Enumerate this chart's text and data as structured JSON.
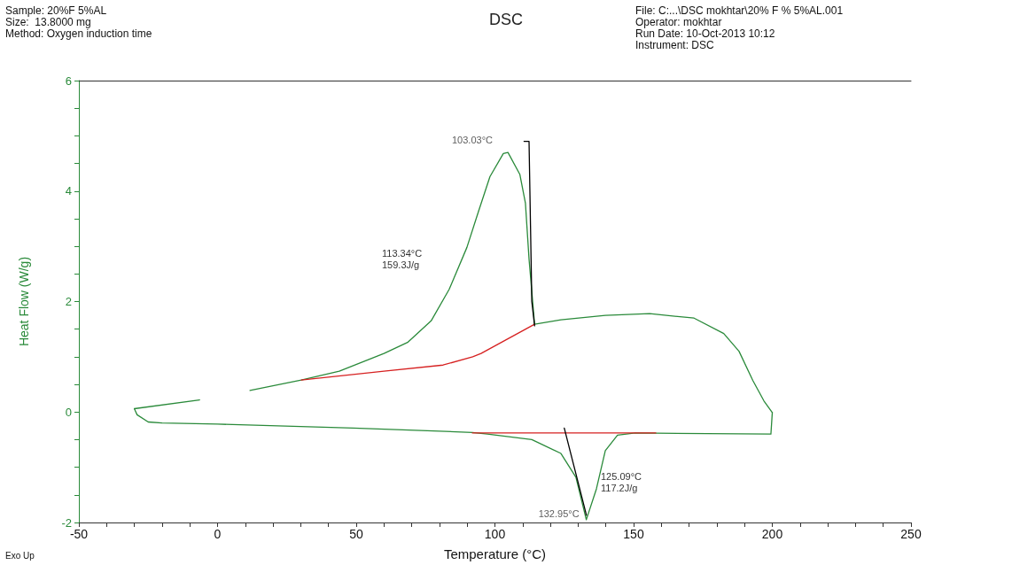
{
  "chart_data": {
    "type": "line",
    "title": "DSC",
    "xlabel": "Temperature (°C)",
    "ylabel": "Heat Flow (W/g)",
    "annotations": [
      "Sample: 20%F 5%AL",
      "Size:  13.8000 mg",
      "Method: Oxygen induction time",
      "File: C:...\\DSC mokhtar\\20% F % 5%AL.001",
      "Operator: mokhtar",
      "Run Date: 10-Oct-2013 10:12",
      "Instrument: DSC",
      "Exo Up",
      "113.34°C\n159.3J/g",
      "125.09°C\n117.2J/g",
      {
        "text": "103.03°C",
        "x": 103.03,
        "y": 4.7
      },
      {
        "text": "132.95°C",
        "x": 132.95,
        "y": -1.95
      }
    ],
    "marker": "none",
    "line_style": "solid",
    "grid": false,
    "xlim": [
      -50,
      250
    ],
    "ylim": [
      -2,
      6
    ],
    "xticks": [
      -50,
      {
        "value": -40,
        "label": null
      },
      {
        "value": -30,
        "label": null
      },
      {
        "value": -20,
        "label": null
      },
      {
        "value": -10,
        "label": null
      },
      0,
      {
        "value": 10,
        "label": null
      },
      {
        "value": 20,
        "label": null
      },
      {
        "value": 30,
        "label": null
      },
      {
        "value": 40,
        "label": null
      },
      50,
      {
        "value": 60,
        "label": null
      },
      {
        "value": 70,
        "label": null
      },
      {
        "value": 80,
        "label": null
      },
      {
        "value": 90,
        "label": null
      },
      100,
      {
        "value": 110,
        "label": null
      },
      {
        "value": 120,
        "label": null
      },
      {
        "value": 130,
        "label": null
      },
      {
        "value": 140,
        "label": null
      },
      150,
      {
        "value": 160,
        "label": null
      },
      {
        "value": 170,
        "label": null
      },
      {
        "value": 180,
        "label": null
      },
      {
        "value": 190,
        "label": null
      },
      200,
      {
        "value": 210,
        "label": null
      },
      {
        "value": 220,
        "label": null
      },
      {
        "value": 230,
        "label": null
      },
      {
        "value": 240,
        "label": null
      },
      250
    ],
    "yticks": [
      -2,
      {
        "value": -1.5,
        "label": null
      },
      {
        "value": -1,
        "label": null
      },
      {
        "value": -0.5,
        "label": null
      },
      0,
      {
        "value": 0.5,
        "label": null
      },
      {
        "value": 1,
        "label": null
      },
      {
        "value": 1.5,
        "label": null
      },
      2,
      {
        "value": 2.5,
        "label": null
      },
      {
        "value": 3,
        "label": null
      },
      {
        "value": 3.5,
        "label": null
      },
      4,
      {
        "value": 4.5,
        "label": null
      },
      {
        "value": 5,
        "label": null
      },
      {
        "value": 5.5,
        "label": null
      },
      6
    ],
    "series": [
      {
        "color": "#2a8a3a",
        "x": [
          -30,
          -29,
          -25,
          -20,
          0,
          49,
          91.9,
          97.3,
          113.3,
          123.8,
          129.2,
          132.95,
          136.6,
          139.8,
          144.2,
          150.6,
          199.5,
          200
        ],
        "values": [
          0.06,
          -0.05,
          -0.18,
          -0.2,
          -0.22,
          -0.29,
          -0.37,
          -0.4,
          -0.5,
          -0.75,
          -1.18,
          -1.95,
          -1.39,
          -0.7,
          -0.42,
          -0.38,
          -0.4,
          -0.01
        ]
      },
      {
        "color": "#2a8a3a",
        "x": [
          200,
          197,
          193,
          188,
          182.5,
          171.8,
          155.8,
          139.8,
          123.8,
          114.3,
          112.3,
          111,
          109,
          104.7,
          103.03,
          98.2,
          94,
          89.9,
          83.5,
          77,
          68.5,
          60,
          43.9,
          30.2,
          11.7,
          2,
          -6.5,
          -30
        ],
        "values": [
          -0.01,
          0.2,
          0.57,
          1.1,
          1.42,
          1.7,
          1.78,
          1.75,
          1.67,
          1.59,
          2.77,
          3.78,
          4.3,
          4.7,
          4.68,
          4.26,
          3.62,
          2.98,
          2.22,
          1.65,
          1.26,
          1.06,
          0.74,
          0.58,
          0.39,
          null,
          0.22,
          0.06
        ]
      },
      {
        "color": "#d62020",
        "x": [
          30.2,
          60,
          81.3,
          92,
          95,
          114.3
        ],
        "values": [
          0.58,
          0.74,
          0.85,
          1.0,
          1.06,
          1.59
        ]
      },
      {
        "color": "#d62020",
        "x": [
          91.9,
          158
        ],
        "values": [
          -0.38,
          -0.38
        ]
      },
      {
        "color": "#000000",
        "x": [
          110.5,
          112.3,
          113.3,
          114.3
        ],
        "values": [
          4.9,
          4.9,
          2.0,
          1.56
        ]
      },
      {
        "color": "#000000",
        "x": [
          125,
          133
        ],
        "values": [
          -0.29,
          -1.87
        ]
      }
    ]
  }
}
